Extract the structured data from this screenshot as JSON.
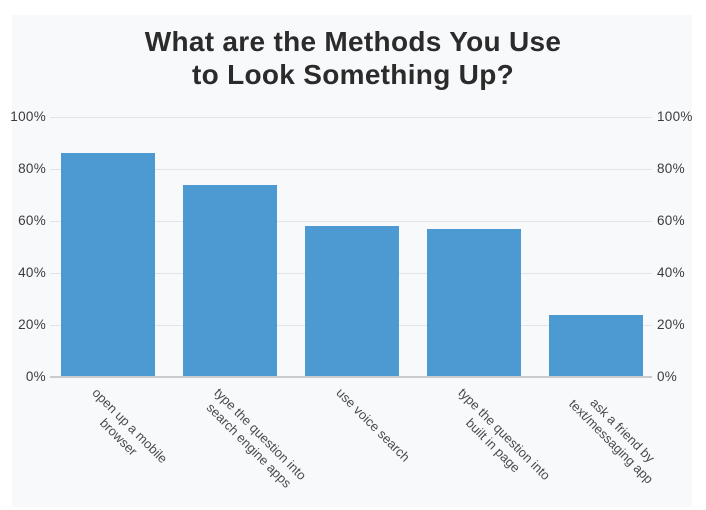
{
  "title": {
    "line1": "What are the Methods You Use",
    "line2": "to Look Something Up?"
  },
  "chart_data": {
    "type": "bar",
    "title": "What are the Methods You Use to Look Something Up?",
    "categories": [
      "open up a mobile browser",
      "type the question into search engine apps",
      "use voice search",
      "type the question into built in page",
      "ask a friend by text/messaging app"
    ],
    "category_label_lines": [
      [
        "open up a mobile",
        "browser"
      ],
      [
        "type the question into",
        "search engine apps"
      ],
      [
        "use voice search"
      ],
      [
        "type the question into",
        "built in page"
      ],
      [
        "ask a friend by",
        "text/messaging app"
      ]
    ],
    "values": [
      86,
      74,
      58,
      57,
      24
    ],
    "unit": "%",
    "y_ticks": [
      "0%",
      "20%",
      "40%",
      "60%",
      "80%",
      "100%"
    ],
    "ylim": [
      0,
      100
    ],
    "grid": true,
    "dual_y_axis": true,
    "legend": "none",
    "xlabel": "",
    "ylabel": ""
  },
  "colors": {
    "page_bg": "#ffffff",
    "panel_bg": "#f8f9fb",
    "bar": "#4d9ad3",
    "gridline": "#e2e4e8",
    "axis_line": "#c9cbcf",
    "title_text": "#2b2b2b",
    "tick_text": "#3b3b3b",
    "label_text": "#4a4a4a"
  }
}
